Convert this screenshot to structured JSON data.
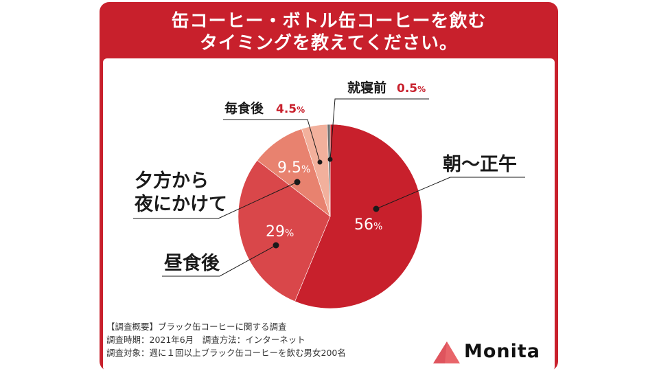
{
  "title_lines": [
    "缶コーヒー・ボトル缶コーヒーを飲む",
    "タイミングを教えてください。"
  ],
  "chart_data": {
    "type": "pie",
    "title": "缶コーヒー・ボトル缶コーヒーを飲むタイミングを教えてください。",
    "unit": "%",
    "slices": [
      {
        "label": "朝〜正午",
        "value": 56,
        "display": "56",
        "color": "#c8202c"
      },
      {
        "label": "昼食後",
        "value": 29,
        "display": "29",
        "color": "#d9474a"
      },
      {
        "label": "夕方から夜にかけて",
        "value": 9.5,
        "display": "9.5",
        "color": "#e8826f"
      },
      {
        "label": "毎食後",
        "value": 4.5,
        "display": "4.5",
        "color": "#f2b09c"
      },
      {
        "label": "就寝前",
        "value": 0.5,
        "display": "0.5",
        "color": "#6e6e6e"
      }
    ]
  },
  "labels": {
    "morning": "朝〜正午",
    "after_lunch": "昼食後",
    "evening_line1": "夕方から",
    "evening_line2": "夜にかけて",
    "after_meals": "毎食後",
    "before_bed": "就寝前"
  },
  "footnote_lines": [
    "【調査概要】ブラック缶コーヒーに関する調査",
    "調査時期：2021年6月　調査方法：インターネット",
    "調査対象：週に１回以上ブラック缶コーヒーを飲む男女200名"
  ],
  "brand": {
    "name": "Monita",
    "color": "#e8656a"
  }
}
